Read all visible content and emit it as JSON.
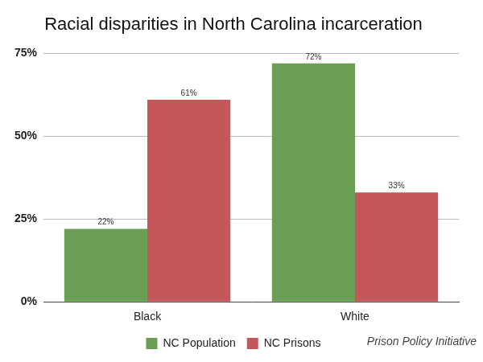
{
  "chart_data": {
    "type": "bar",
    "title": "Racial disparities in North Carolina incarceration",
    "categories": [
      "Black",
      "White"
    ],
    "series": [
      {
        "name": "NC Population",
        "color": "#6a9e55",
        "values": [
          22,
          72
        ],
        "value_labels": [
          "22%",
          "72%"
        ]
      },
      {
        "name": "NC Prisons",
        "color": "#c4575a",
        "values": [
          61,
          33
        ],
        "value_labels": [
          "61%",
          "33%"
        ]
      }
    ],
    "ylim": [
      0,
      75
    ],
    "yticks": [
      {
        "value": 0,
        "label": "0%"
      },
      {
        "value": 25,
        "label": "25%"
      },
      {
        "value": 50,
        "label": "50%"
      },
      {
        "value": 75,
        "label": "75%"
      }
    ],
    "grid": true,
    "legend": "bottom",
    "data_labels": true,
    "annotations": [
      "Prison Policy Initiative"
    ]
  }
}
